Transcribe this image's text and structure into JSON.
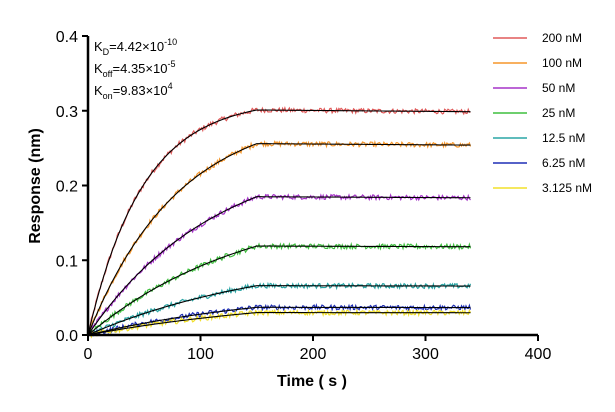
{
  "chart_data": {
    "type": "line",
    "xlabel": "Time ( s )",
    "ylabel": "Response (nm)",
    "xlim": [
      0,
      400
    ],
    "ylim": [
      0,
      0.4
    ],
    "x_ticks": [
      "0",
      "100",
      "200",
      "300",
      "400"
    ],
    "y_ticks": [
      "0.0",
      "0.1",
      "0.2",
      "0.3",
      "0.4"
    ],
    "grid": false,
    "legend_position": "right",
    "association_end_s": 150,
    "dissociation_end_s": 340,
    "annotations": [
      {
        "symbol": "K",
        "sub": "D",
        "value": "=4.42×10",
        "sup": "-10"
      },
      {
        "symbol": "K",
        "sub": "off",
        "value": "=4.35×10",
        "sup": "-5"
      },
      {
        "symbol": "K",
        "sub": "on",
        "value": "=9.83×10",
        "sup": "4"
      }
    ],
    "series": [
      {
        "name": "200 nM",
        "color": "#e05a5a",
        "plateau": 0.301,
        "k_obs": 0.0205
      },
      {
        "name": "100 nM",
        "color": "#f5962a",
        "plateau": 0.256,
        "k_obs": 0.0125
      },
      {
        "name": "50 nM",
        "color": "#a533c8",
        "plateau": 0.185,
        "k_obs": 0.0088
      },
      {
        "name": "25 nM",
        "color": "#3fbf3f",
        "plateau": 0.119,
        "k_obs": 0.007
      },
      {
        "name": "12.5 nM",
        "color": "#2aa5a5",
        "plateau": 0.066,
        "k_obs": 0.006
      },
      {
        "name": "6.25 nM",
        "color": "#1f2fb5",
        "plateau": 0.037,
        "k_obs": 0.0055
      },
      {
        "name": "3.125 nM",
        "color": "#f2e02a",
        "plateau": 0.03,
        "k_obs": 0.005
      }
    ]
  }
}
